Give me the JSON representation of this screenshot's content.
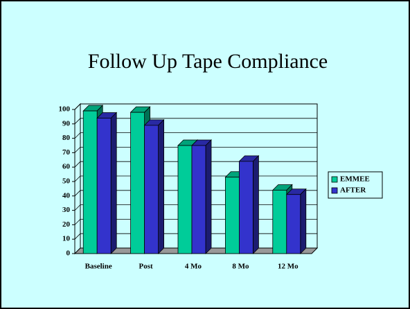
{
  "chart_data": {
    "type": "bar3d",
    "title": "Follow Up Tape Compliance",
    "categories": [
      "Baseline",
      "Post",
      "4 Mo",
      "8 Mo",
      "12 Mo"
    ],
    "series": [
      {
        "name": "EMMEE",
        "color": "#00cc99",
        "values": [
          99,
          98,
          75,
          53,
          44
        ]
      },
      {
        "name": "AFTER",
        "color": "#3333cc",
        "values": [
          94,
          89,
          75,
          64,
          41
        ]
      }
    ],
    "ylim": [
      0,
      100
    ],
    "yticks": [
      0,
      10,
      20,
      30,
      40,
      50,
      60,
      70,
      80,
      90,
      100
    ],
    "grid": true,
    "legend": "right"
  }
}
